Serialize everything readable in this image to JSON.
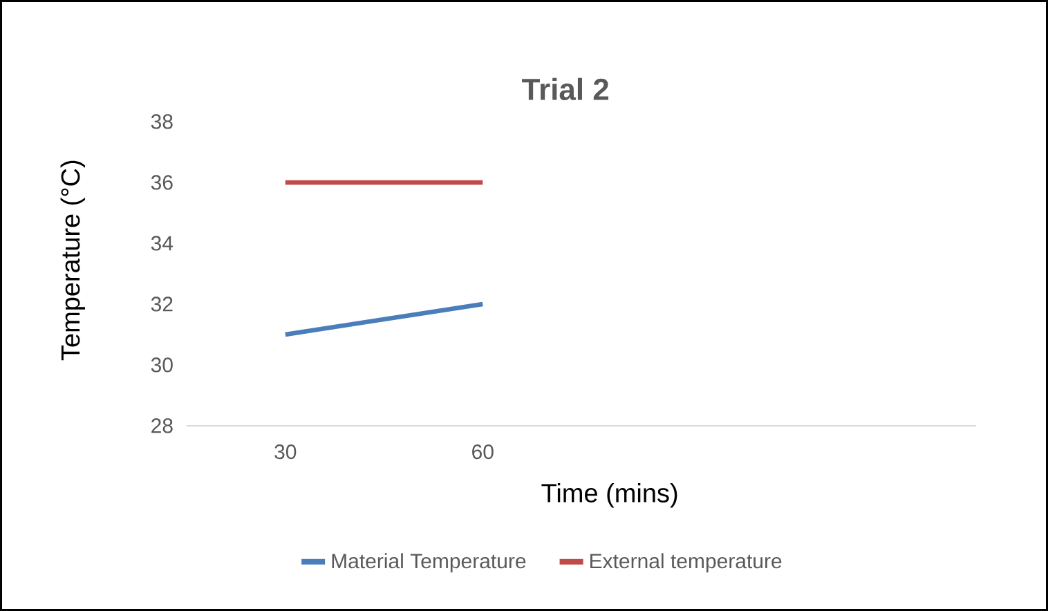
{
  "chart_data": {
    "type": "line",
    "title": "Trial 2",
    "xlabel": "Time (mins)",
    "ylabel": "Temperature (°C)",
    "categories": [
      "30",
      "60",
      null,
      null
    ],
    "series": [
      {
        "name": "Material Temperature",
        "color": "#4a7ebb",
        "values": [
          31,
          32,
          null,
          null
        ]
      },
      {
        "name": "External temperature",
        "color": "#be4b48",
        "values": [
          36,
          36,
          null,
          null
        ]
      }
    ],
    "ylim": [
      28,
      38
    ],
    "yticks": [
      28,
      30,
      32,
      34,
      36,
      38
    ],
    "legend": "bottom"
  }
}
